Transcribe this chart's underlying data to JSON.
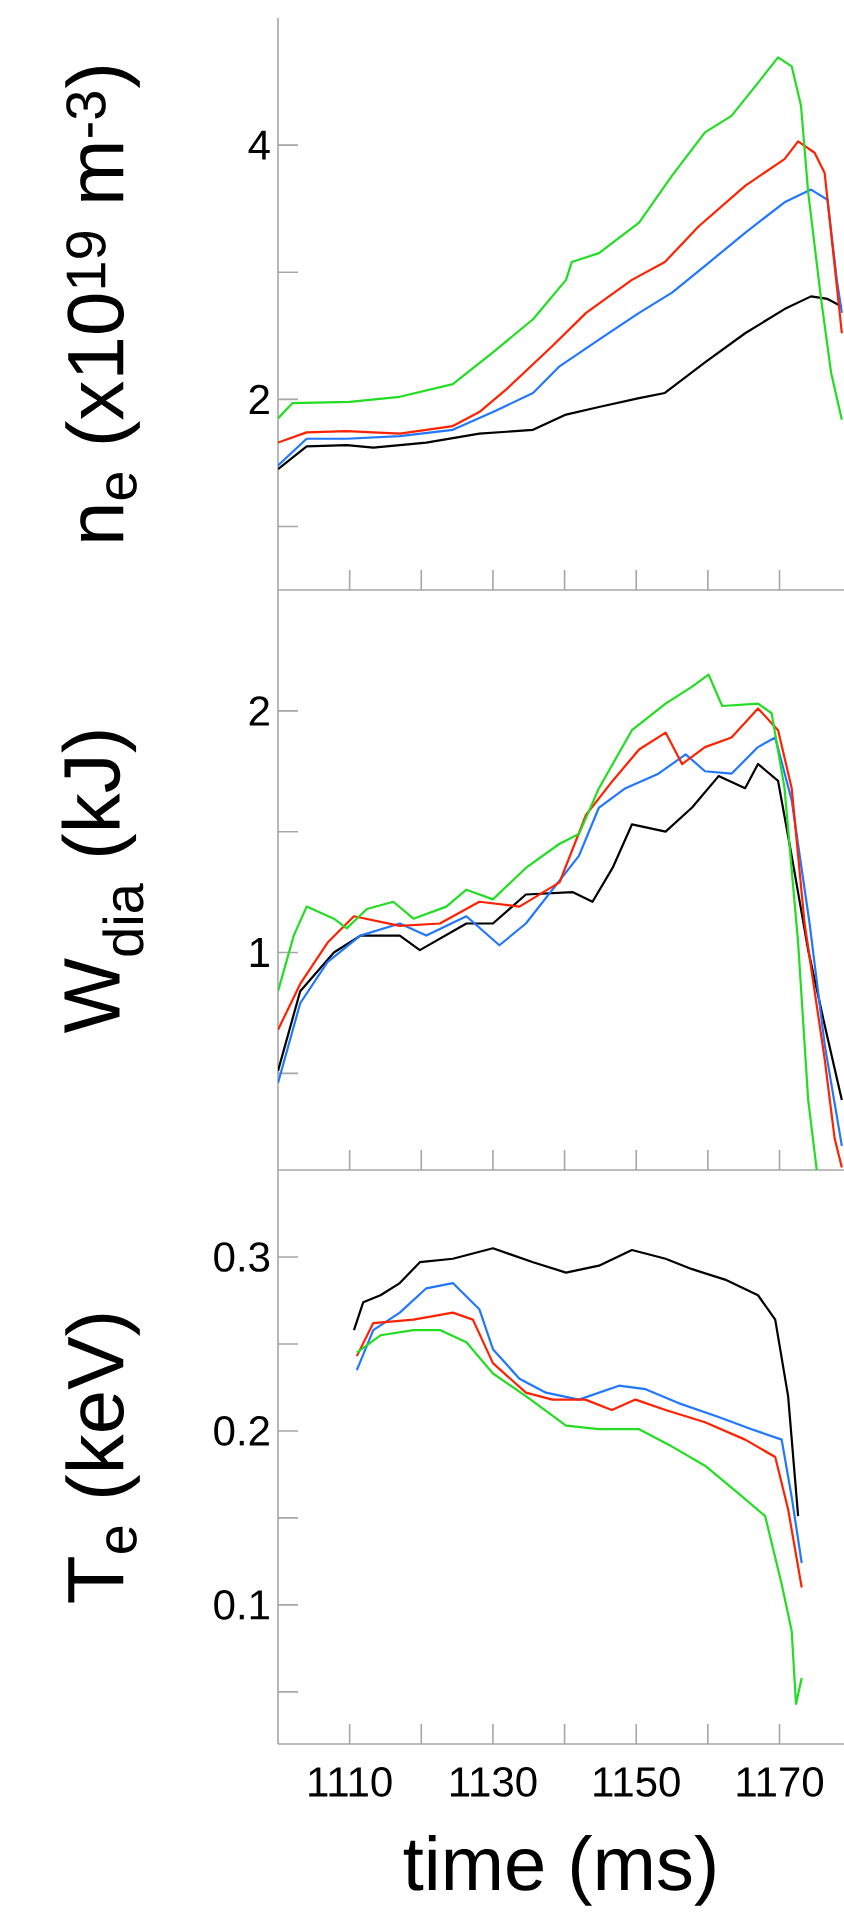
{
  "chart_data": [
    {
      "type": "line",
      "ylabel": "n$_{e}$ (x10$^{19}$ m$^{-3}$)",
      "xlim": [
        1100,
        1179
      ],
      "ylim": [
        0.5,
        5
      ],
      "xticks": [
        1110,
        {
          "value": 1120,
          "label": null
        },
        1130,
        {
          "value": 1140,
          "label": null
        },
        1150,
        {
          "value": 1160,
          "label": null
        },
        1170
      ],
      "yticks": [
        {
          "value": 1,
          "label": null
        },
        2,
        {
          "value": 3,
          "label": null
        },
        4
      ],
      "tick_labels": "y",
      "series": [
        {
          "color": "#000000",
          "x": [
            1100,
            1104,
            1109.6,
            1113.3,
            1120.7,
            1128.1,
            1135.6,
            1140.2,
            1144.8,
            1150.4,
            1154,
            1159.6,
            1165.2,
            1170.7,
            1174.4,
            1176.7,
            1178.7
          ],
          "values": [
            1.45,
            1.63,
            1.64,
            1.62,
            1.66,
            1.73,
            1.76,
            1.88,
            1.94,
            2.01,
            2.05,
            2.29,
            2.52,
            2.71,
            2.81,
            2.79,
            2.73
          ]
        },
        {
          "color": "#2277ff",
          "x": [
            1100,
            1104,
            1109.6,
            1117,
            1124.4,
            1130,
            1135.6,
            1139.3,
            1144.8,
            1150.4,
            1155,
            1159.6,
            1165.2,
            1170.7,
            1174.4,
            1176.7,
            1178,
            1178.7
          ],
          "values": [
            1.48,
            1.69,
            1.69,
            1.71,
            1.76,
            1.9,
            2.05,
            2.26,
            2.47,
            2.68,
            2.84,
            3.05,
            3.31,
            3.55,
            3.65,
            3.57,
            2.94,
            2.68
          ]
        },
        {
          "color": "#ff2200",
          "x": [
            1100,
            1104,
            1109.6,
            1117,
            1124.4,
            1128.1,
            1131.9,
            1138.3,
            1143,
            1149.4,
            1154,
            1158.7,
            1165.2,
            1170.7,
            1172.6,
            1174.9,
            1176.3,
            1177.7,
            1178.7
          ],
          "values": [
            1.66,
            1.74,
            1.75,
            1.73,
            1.79,
            1.9,
            2.08,
            2.42,
            2.68,
            2.94,
            3.08,
            3.36,
            3.68,
            3.89,
            4.03,
            3.94,
            3.78,
            3.05,
            2.52
          ]
        },
        {
          "color": "#22dd22",
          "x": [
            1100,
            1102,
            1110,
            1117,
            1124.4,
            1130,
            1135.6,
            1140.2,
            1141,
            1144.8,
            1150.4,
            1155,
            1159.6,
            1163.3,
            1167,
            1169.8,
            1171.7,
            1173,
            1174,
            1175.8,
            1177.2,
            1178.7
          ],
          "values": [
            1.85,
            1.97,
            1.98,
            2.02,
            2.12,
            2.37,
            2.63,
            2.94,
            3.08,
            3.15,
            3.39,
            3.76,
            4.1,
            4.23,
            4.49,
            4.69,
            4.62,
            4.31,
            3.63,
            2.79,
            2.21,
            1.84
          ]
        }
      ]
    },
    {
      "type": "line",
      "ylabel": "W$_{dia}$ (kJ)",
      "xlim": [
        1100,
        1179
      ],
      "ylim": [
        0.1,
        2.5
      ],
      "xticks": [
        1110,
        {
          "value": 1120,
          "label": null
        },
        1130,
        {
          "value": 1140,
          "label": null
        },
        1150,
        {
          "value": 1160,
          "label": null
        },
        1170
      ],
      "yticks": [
        {
          "value": 0.5,
          "label": null
        },
        1,
        {
          "value": 1.5,
          "label": null
        },
        2
      ],
      "tick_labels": "y",
      "series": [
        {
          "color": "#000000",
          "x": [
            1100,
            1103.1,
            1107.8,
            1111.5,
            1117,
            1119.8,
            1126.3,
            1130,
            1134.6,
            1141.1,
            1143.9,
            1146.7,
            1149.4,
            1154.1,
            1157.8,
            1161.5,
            1165.2,
            1167,
            1169.8,
            1171.7,
            1174,
            1176.3,
            1178.7
          ],
          "values": [
            0.51,
            0.84,
            1.0,
            1.07,
            1.07,
            1.01,
            1.12,
            1.12,
            1.24,
            1.25,
            1.21,
            1.35,
            1.53,
            1.5,
            1.6,
            1.73,
            1.68,
            1.78,
            1.71,
            1.4,
            1.01,
            0.7,
            0.39
          ]
        },
        {
          "color": "#2277ff",
          "x": [
            1100,
            1103.1,
            1106.9,
            1111.5,
            1117,
            1120.7,
            1126.3,
            1130.9,
            1134.6,
            1138.3,
            1142,
            1144.8,
            1148.5,
            1153.1,
            1156.9,
            1159.6,
            1163.3,
            1167,
            1169.4,
            1171.7,
            1174.2,
            1176.3,
            1178.7
          ],
          "values": [
            0.46,
            0.79,
            0.96,
            1.07,
            1.12,
            1.07,
            1.15,
            1.03,
            1.12,
            1.26,
            1.4,
            1.6,
            1.68,
            1.74,
            1.82,
            1.75,
            1.74,
            1.85,
            1.89,
            1.63,
            1.12,
            0.62,
            0.2
          ]
        },
        {
          "color": "#ff2200",
          "x": [
            1100,
            1103.1,
            1106.9,
            1110.6,
            1117,
            1122.6,
            1128.1,
            1133.7,
            1139.3,
            1143,
            1146.7,
            1150.4,
            1154.1,
            1156.4,
            1159.6,
            1163.3,
            1167,
            1169.8,
            1171.7,
            1173.5,
            1176.3,
            1177.7,
            1178.7
          ],
          "values": [
            0.68,
            0.87,
            1.04,
            1.15,
            1.11,
            1.12,
            1.21,
            1.19,
            1.29,
            1.57,
            1.71,
            1.84,
            1.91,
            1.78,
            1.85,
            1.89,
            2.01,
            1.92,
            1.68,
            1.12,
            0.56,
            0.23,
            0.11
          ]
        },
        {
          "color": "#22dd22",
          "x": [
            1100,
            1102.2,
            1104,
            1107.8,
            1109.6,
            1112.4,
            1116.1,
            1118.9,
            1123.5,
            1126.3,
            1130,
            1134.6,
            1139.3,
            1142,
            1144.8,
            1149.4,
            1154.1,
            1157.8,
            1160.1,
            1162,
            1167,
            1168.9,
            1170.7,
            1172.6,
            1174,
            1175.2
          ],
          "values": [
            0.84,
            1.07,
            1.19,
            1.14,
            1.1,
            1.18,
            1.21,
            1.14,
            1.19,
            1.26,
            1.22,
            1.35,
            1.45,
            1.49,
            1.68,
            1.92,
            2.03,
            2.1,
            2.15,
            2.02,
            2.03,
            1.99,
            1.68,
            1.04,
            0.39,
            0.1
          ]
        }
      ]
    },
    {
      "type": "line",
      "ylabel": "T$_{e}$ (keV)",
      "xlabel": "time (ms)",
      "xlim": [
        1100,
        1179
      ],
      "ylim": [
        0.02,
        0.35
      ],
      "xticks": [
        1110,
        {
          "value": 1120,
          "label": null
        },
        1130,
        {
          "value": 1140,
          "label": null
        },
        1150,
        {
          "value": 1160,
          "label": null
        },
        1170
      ],
      "yticks": [
        {
          "value": 0.05,
          "label": null
        },
        0.1,
        {
          "value": 0.15,
          "label": null
        },
        0.2,
        {
          "value": 0.25,
          "label": null
        },
        0.3
      ],
      "series": [
        {
          "color": "#000000",
          "x": [
            1110.6,
            1111.9,
            1114.3,
            1117,
            1119.8,
            1124.4,
            1130,
            1135.6,
            1140.2,
            1144.8,
            1149.4,
            1154.1,
            1157.8,
            1162.4,
            1167,
            1169.4,
            1171.2,
            1172.6
          ],
          "values": [
            0.258,
            0.274,
            0.278,
            0.285,
            0.297,
            0.299,
            0.305,
            0.297,
            0.291,
            0.295,
            0.304,
            0.299,
            0.293,
            0.287,
            0.278,
            0.264,
            0.22,
            0.151
          ]
        },
        {
          "color": "#2277ff",
          "x": [
            1111,
            1113.3,
            1117,
            1120.7,
            1124.4,
            1128.1,
            1130,
            1133.7,
            1137.4,
            1142,
            1147.6,
            1151.3,
            1155.9,
            1161.5,
            1166.1,
            1170.3,
            1171.7,
            1173.1
          ],
          "values": [
            0.235,
            0.258,
            0.268,
            0.282,
            0.285,
            0.27,
            0.247,
            0.23,
            0.222,
            0.218,
            0.226,
            0.224,
            0.216,
            0.208,
            0.201,
            0.195,
            0.162,
            0.124
          ]
        },
        {
          "color": "#ff2200",
          "x": [
            1111,
            1113.3,
            1118.9,
            1124.4,
            1127.2,
            1130,
            1134.6,
            1138.3,
            1142.9,
            1146.6,
            1149.9,
            1154.1,
            1159.6,
            1165.2,
            1169.4,
            1171.2,
            1173.1
          ],
          "values": [
            0.243,
            0.262,
            0.264,
            0.268,
            0.264,
            0.239,
            0.222,
            0.218,
            0.218,
            0.212,
            0.218,
            0.212,
            0.205,
            0.195,
            0.185,
            0.155,
            0.11
          ]
        },
        {
          "color": "#22dd22",
          "x": [
            1111,
            1114.3,
            1118.9,
            1122.6,
            1126.3,
            1130,
            1134.6,
            1140.2,
            1144.8,
            1150.4,
            1155,
            1159.6,
            1164.3,
            1168,
            1170.3,
            1171.7,
            1172.3,
            1173.1
          ],
          "values": [
            0.245,
            0.255,
            0.258,
            0.258,
            0.251,
            0.233,
            0.22,
            0.203,
            0.201,
            0.201,
            0.191,
            0.18,
            0.164,
            0.151,
            0.112,
            0.085,
            0.043,
            0.058
          ]
        }
      ]
    }
  ]
}
